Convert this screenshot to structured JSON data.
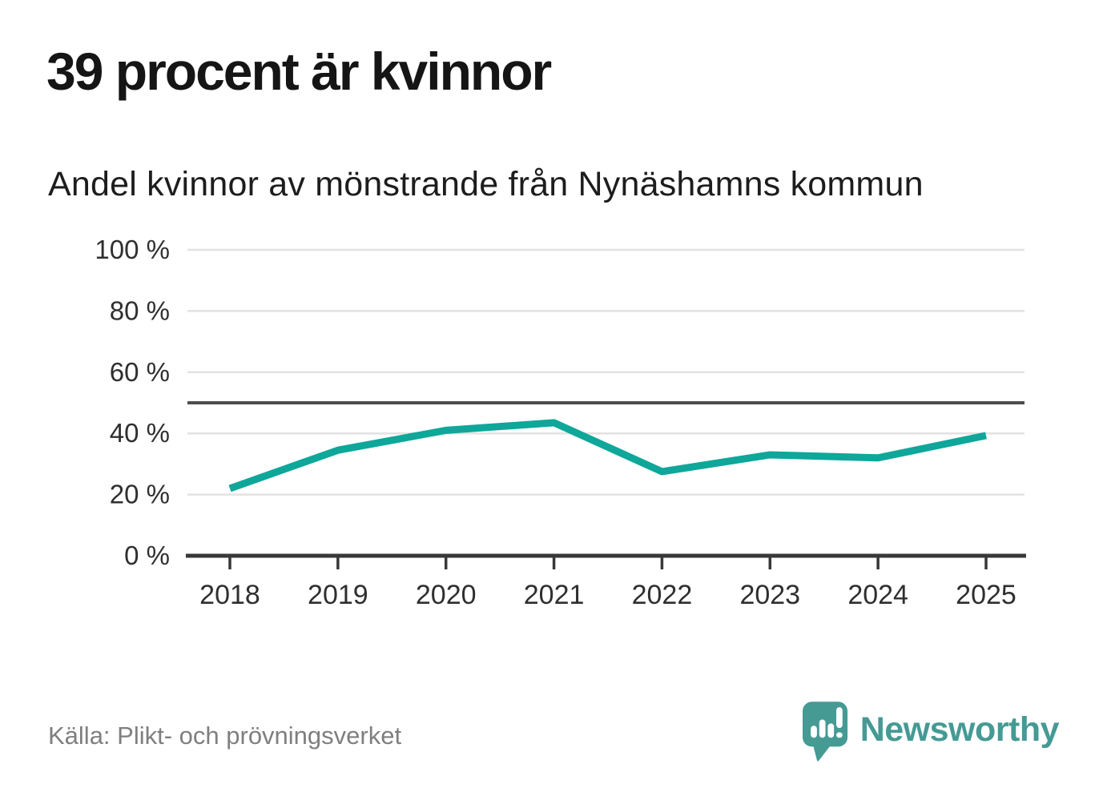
{
  "header": {
    "title": "39 procent är kvinnor",
    "subtitle": "Andel kvinnor av mönstrande från Nynäshamns kommun"
  },
  "chart_data": {
    "type": "line",
    "x": [
      2018,
      2019,
      2020,
      2021,
      2022,
      2023,
      2024,
      2025
    ],
    "series": [
      {
        "name": "Andel kvinnor av mönstrande",
        "values": [
          22,
          34.5,
          41,
          43.5,
          27.5,
          33,
          32,
          39.3
        ]
      }
    ],
    "ylim": [
      0,
      100
    ],
    "y_ticks": [
      0,
      20,
      40,
      60,
      80,
      100
    ],
    "y_tick_suffix": " %",
    "reference_line": 50,
    "grid": "horizontal",
    "legend": "none",
    "xlabel": "",
    "ylabel": "",
    "colors": {
      "line": "#0ea79a",
      "reference_line": "#4d4d4d",
      "axis": "#383838",
      "gridline": "#e2e2e2",
      "tick_label": "#2f2f2f"
    }
  },
  "footer": {
    "source": "Källa: Plikt- och prövningsverket",
    "brand": {
      "name": "Newsworthy",
      "color": "#459a94"
    }
  }
}
